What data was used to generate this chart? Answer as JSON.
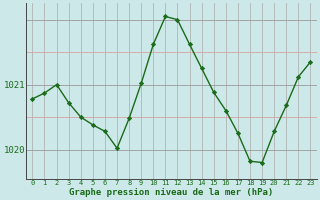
{
  "x": [
    0,
    1,
    2,
    3,
    4,
    5,
    6,
    7,
    8,
    9,
    10,
    11,
    12,
    13,
    14,
    15,
    16,
    17,
    18,
    19,
    20,
    21,
    22,
    23
  ],
  "y": [
    1020.78,
    1020.87,
    1021.0,
    1020.72,
    1020.5,
    1020.38,
    1020.28,
    1020.02,
    1020.48,
    1021.02,
    1021.62,
    1022.05,
    1022.0,
    1021.62,
    1021.25,
    1020.88,
    1020.6,
    1020.25,
    1019.82,
    1019.8,
    1020.28,
    1020.68,
    1021.12,
    1021.35
  ],
  "line_color": "#1a6b1a",
  "marker": "D",
  "marker_size": 2.2,
  "background_color": "#cce8e8",
  "grid_v_color": "#aaaaaa",
  "grid_h_pink_color": "#d8a8a8",
  "grid_h_gray_color": "#999999",
  "xlabel": "Graphe pression niveau de la mer (hPa)",
  "xlabel_color": "#1a6b1a",
  "ylim": [
    1019.55,
    1022.25
  ],
  "xlim": [
    -0.5,
    23.5
  ],
  "tick_color": "#1a6b1a",
  "spine_color": "#444444"
}
